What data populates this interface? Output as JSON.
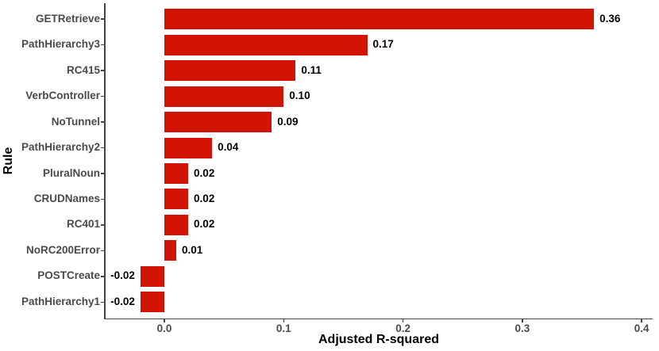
{
  "chart_data": {
    "type": "bar",
    "orientation": "horizontal",
    "xlabel": "Adjusted R-squared",
    "ylabel": "Rule",
    "categories": [
      "GETRetrieve",
      "PathHierarchy3",
      "RC415",
      "VerbController",
      "NoTunnel",
      "PathHierarchy2",
      "PluralNoun",
      "CRUDNames",
      "RC401",
      "NoRC200Error",
      "POSTCreate",
      "PathHierarchy1"
    ],
    "values": [
      0.36,
      0.17,
      0.11,
      0.1,
      0.09,
      0.04,
      0.02,
      0.02,
      0.02,
      0.01,
      -0.02,
      -0.02
    ],
    "value_labels": [
      "0.36",
      "0.17",
      "0.11",
      "0.10",
      "0.09",
      "0.04",
      "0.02",
      "0.02",
      "0.02",
      "0.01",
      "-0.02",
      "-0.02"
    ],
    "x_ticks": [
      0.0,
      0.1,
      0.2,
      0.3,
      0.4
    ],
    "x_tick_labels": [
      "0.0",
      "0.1",
      "0.2",
      "0.3",
      "0.4"
    ],
    "xlim": [
      -0.05,
      0.41
    ],
    "grid": false,
    "legend": false,
    "colors": {
      "bar": "#D21404",
      "axis": "#464646",
      "tick_label": "#4A4A4A",
      "value_label": "#000000",
      "axis_title": "#000000",
      "background": "#FFFFFF"
    }
  }
}
